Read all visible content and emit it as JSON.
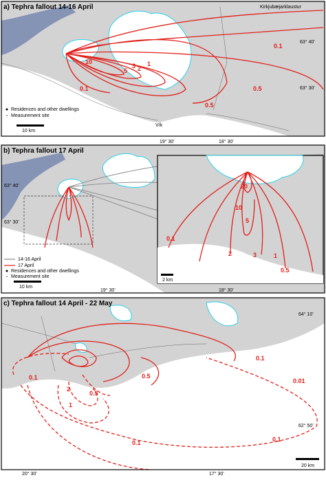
{
  "panels": [
    {
      "title": "a) Tephra fallout 14-16 April",
      "places": [
        "Kirkjubæjarklaustur",
        "Vík"
      ],
      "lat_labels": [
        "63° 40'",
        "63° 30'"
      ],
      "lon_labels": [
        "19° 30'",
        "18° 30'"
      ],
      "legend": [
        "Residences and other dwellings",
        "Measurement site"
      ],
      "scale": "10 km",
      "contour_labels": [
        "0.1",
        "10",
        "5",
        "3",
        "2",
        "1",
        "0.1",
        "0.5",
        "0.5"
      ]
    },
    {
      "title": "b) Tephra fallout 17 April",
      "lat_labels": [
        "63° 40'",
        "63° 30'"
      ],
      "lon_labels": [
        "19° 30'",
        "18° 30'"
      ],
      "legend": [
        "14-16 April",
        "17 April",
        "Residences and other dwellings",
        "Measurement site"
      ],
      "scale": "10 km",
      "inset_scale": "2 km",
      "contour_labels": [
        "20",
        "10",
        "5",
        "3",
        "2",
        "1",
        "0.5",
        "0.1"
      ]
    },
    {
      "title": "c) Tephra fallout 14 April - 22 May",
      "lat_labels": [
        "64° 10'",
        "62° 50'"
      ],
      "lon_labels": [
        "20° 30'",
        "17° 30'"
      ],
      "scale": "20 km",
      "contour_labels": [
        "0.1",
        "0.01",
        "0.5",
        "0.1",
        "2",
        "0.5",
        "1",
        "0.1",
        "0.1"
      ]
    }
  ]
}
